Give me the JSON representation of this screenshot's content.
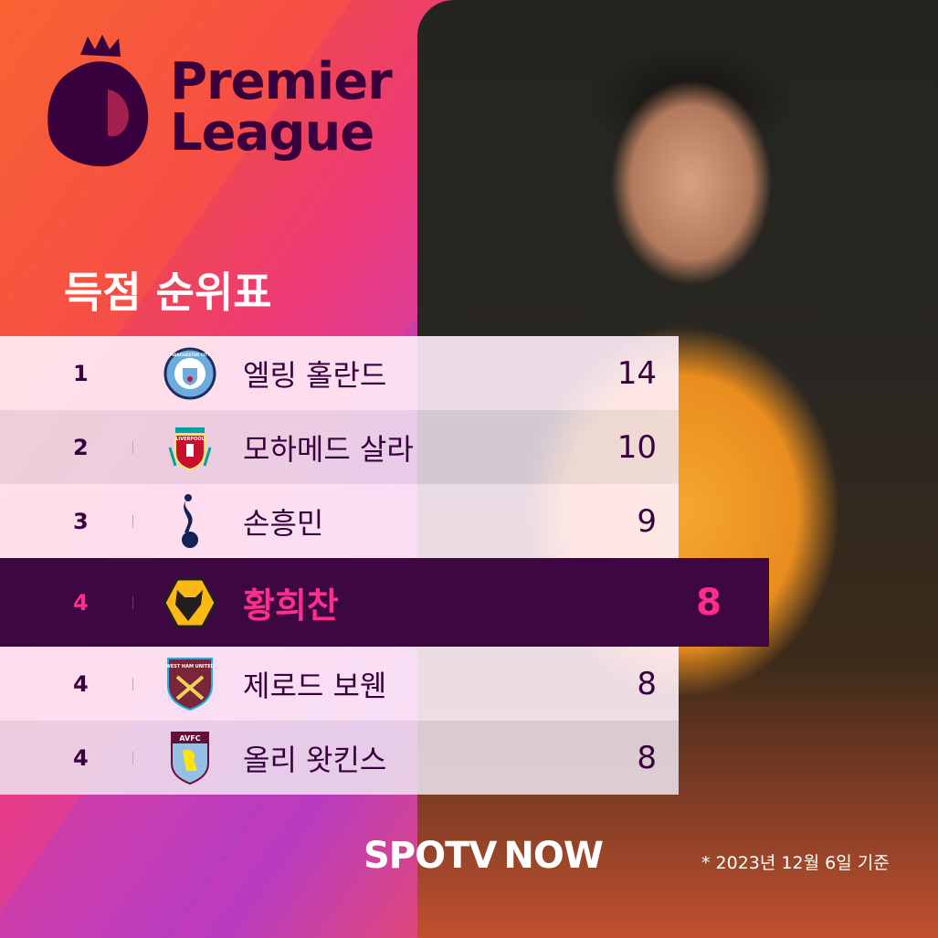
{
  "logo": {
    "line1": "Premier",
    "line2": "League"
  },
  "title": "득점 순위표",
  "rows": [
    {
      "rank": "1",
      "club": "Manchester City",
      "name": "엘링 홀란드",
      "goals": "14",
      "highlight": false
    },
    {
      "rank": "2",
      "club": "Liverpool",
      "name": "모하메드 살라",
      "goals": "10",
      "highlight": false
    },
    {
      "rank": "3",
      "club": "Tottenham Hotspur",
      "name": "손흥민",
      "goals": "9",
      "highlight": false
    },
    {
      "rank": "4",
      "club": "Wolverhampton Wanderers",
      "name": "황희찬",
      "goals": "8",
      "highlight": true
    },
    {
      "rank": "4",
      "club": "West Ham United",
      "name": "제로드 보웬",
      "goals": "8",
      "highlight": false
    },
    {
      "rank": "4",
      "club": "Aston Villa",
      "name": "올리 왓킨스",
      "goals": "8",
      "highlight": false
    }
  ],
  "crest_text": {
    "mci": "MANCHESTER CITY",
    "liv": "LIVERPOOL",
    "whu": "WEST HAM UNITED",
    "avl": "AVFC"
  },
  "brand": {
    "spotv": "SPOTV",
    "now": "NOW"
  },
  "note": "* 2023년 12월 6일 기준",
  "colors": {
    "purple": "#38003c",
    "highlight_bg": "#3d0842",
    "highlight_text": "#ff2e8a",
    "play_accent": "#3de0c0"
  }
}
